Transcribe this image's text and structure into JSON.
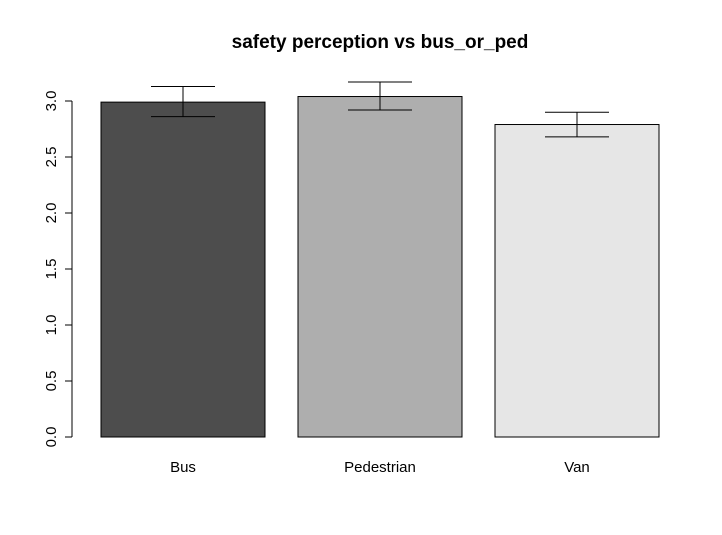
{
  "chart_data": {
    "type": "bar",
    "title": "safety perception vs bus_or_ped",
    "xlabel": "",
    "ylabel": "",
    "categories": [
      "Bus",
      "Pedestrian",
      "Van"
    ],
    "values": [
      2.99,
      3.04,
      2.79
    ],
    "error_low": [
      2.86,
      2.92,
      2.68
    ],
    "error_high": [
      3.13,
      3.17,
      2.9
    ],
    "bar_colors": [
      "#4d4d4d",
      "#aeaeae",
      "#e6e6e6"
    ],
    "ylim": [
      0,
      3.0
    ],
    "y_ticks": [
      "0.0",
      "0.5",
      "1.0",
      "1.5",
      "2.0",
      "2.5",
      "3.0"
    ],
    "grid": false
  }
}
